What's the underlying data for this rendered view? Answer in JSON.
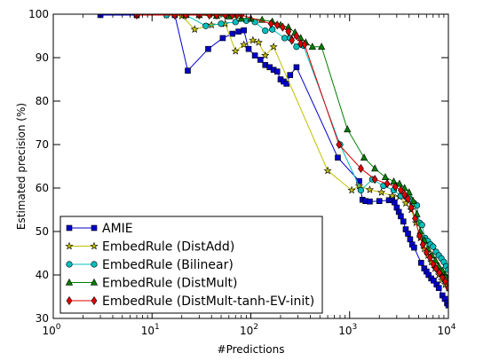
{
  "chart_data": {
    "type": "line",
    "title": "",
    "xlabel": "#Predictions",
    "ylabel": "Estimated precision (%)",
    "xscale": "log",
    "xlim": [
      1,
      10000
    ],
    "ylim": [
      30,
      100
    ],
    "xticks": [
      {
        "value": 1,
        "base": "10",
        "exp": "0"
      },
      {
        "value": 10,
        "base": "10",
        "exp": "1"
      },
      {
        "value": 100,
        "base": "10",
        "exp": "2"
      },
      {
        "value": 1000,
        "base": "10",
        "exp": "3"
      },
      {
        "value": 10000,
        "base": "10",
        "exp": "4"
      }
    ],
    "yticks": [
      30,
      40,
      50,
      60,
      70,
      80,
      90,
      100
    ],
    "grid": false,
    "legend_position": "lower-left",
    "series": [
      {
        "name": "AMIE",
        "color": "#0000cc",
        "marker": "square",
        "points": [
          [
            3,
            99.8
          ],
          [
            7,
            99.8
          ],
          [
            17,
            99.8
          ],
          [
            23,
            87
          ],
          [
            37,
            92
          ],
          [
            52,
            94.5
          ],
          [
            65,
            95.5
          ],
          [
            75,
            96
          ],
          [
            85,
            96.3
          ],
          [
            95,
            92
          ],
          [
            110,
            90.5
          ],
          [
            125,
            89.5
          ],
          [
            140,
            88.3
          ],
          [
            155,
            87.8
          ],
          [
            170,
            87.2
          ],
          [
            185,
            86.8
          ],
          [
            200,
            85
          ],
          [
            215,
            84.5
          ],
          [
            230,
            84
          ],
          [
            250,
            86
          ],
          [
            290,
            87.8
          ],
          [
            760,
            67
          ],
          [
            1250,
            61.6
          ],
          [
            1350,
            57.3
          ],
          [
            1450,
            57
          ],
          [
            1600,
            56.9
          ],
          [
            2000,
            57
          ],
          [
            2500,
            57.2
          ],
          [
            2700,
            57.5
          ],
          [
            2850,
            56.7
          ],
          [
            3000,
            55.5
          ],
          [
            3150,
            54.5
          ],
          [
            3300,
            53.5
          ],
          [
            3500,
            52.3
          ],
          [
            3700,
            50.5
          ],
          [
            3900,
            49.5
          ],
          [
            4100,
            48.2
          ],
          [
            4300,
            47
          ],
          [
            4500,
            46.3
          ],
          [
            5300,
            42.8
          ],
          [
            5700,
            41.5
          ],
          [
            6000,
            40.8
          ],
          [
            6300,
            40
          ],
          [
            6700,
            39.2
          ],
          [
            7100,
            38.7
          ],
          [
            7600,
            37.8
          ],
          [
            8000,
            37
          ],
          [
            8700,
            35.3
          ],
          [
            9200,
            34.5
          ],
          [
            9700,
            33.5
          ],
          [
            10000,
            33
          ]
        ]
      },
      {
        "name": "EmbedRule (DistAdd)",
        "color": "#bfbf00",
        "marker": "star",
        "points": [
          [
            7,
            99.8
          ],
          [
            14,
            99.8
          ],
          [
            20,
            99.6
          ],
          [
            27,
            96.5
          ],
          [
            40,
            97.5
          ],
          [
            55,
            97.8
          ],
          [
            70,
            91.5
          ],
          [
            85,
            93
          ],
          [
            105,
            94
          ],
          [
            120,
            93.5
          ],
          [
            140,
            90.5
          ],
          [
            170,
            92.5
          ],
          [
            600,
            64
          ],
          [
            1050,
            59.5
          ],
          [
            1250,
            60.5
          ],
          [
            1600,
            59.6
          ],
          [
            2100,
            59
          ],
          [
            2700,
            58.2
          ],
          [
            3200,
            58
          ],
          [
            3700,
            56.5
          ],
          [
            4200,
            55
          ],
          [
            4700,
            52
          ],
          [
            5200,
            48.5
          ],
          [
            5700,
            46
          ],
          [
            6200,
            44.5
          ],
          [
            6700,
            43
          ],
          [
            7300,
            41.5
          ],
          [
            8000,
            40
          ],
          [
            8600,
            38.8
          ],
          [
            9300,
            37.8
          ],
          [
            10000,
            37
          ]
        ]
      },
      {
        "name": "EmbedRule (Bilinear)",
        "color": "#00bfbf",
        "marker": "circle",
        "points": [
          [
            14,
            99.8
          ],
          [
            22,
            99.8
          ],
          [
            35,
            97.3
          ],
          [
            50,
            97.8
          ],
          [
            70,
            98.2
          ],
          [
            90,
            98.5
          ],
          [
            110,
            98.2
          ],
          [
            140,
            96.2
          ],
          [
            165,
            96.5
          ],
          [
            220,
            94.5
          ],
          [
            250,
            94.5
          ],
          [
            290,
            92.5
          ],
          [
            340,
            92.8
          ],
          [
            800,
            70
          ],
          [
            1300,
            59.5
          ],
          [
            1700,
            62
          ],
          [
            2200,
            60.5
          ],
          [
            2800,
            59.5
          ],
          [
            3300,
            58.2
          ],
          [
            3700,
            58
          ],
          [
            4100,
            57.5
          ],
          [
            4500,
            56.5
          ],
          [
            4800,
            56
          ],
          [
            5100,
            52
          ],
          [
            5400,
            51.5
          ],
          [
            5800,
            48.5
          ],
          [
            6200,
            47.8
          ],
          [
            6600,
            47
          ],
          [
            7000,
            46.5
          ],
          [
            7500,
            45.3
          ],
          [
            8000,
            44.5
          ],
          [
            8500,
            43.8
          ],
          [
            9000,
            43
          ],
          [
            9500,
            42
          ],
          [
            10000,
            41.2
          ]
        ]
      },
      {
        "name": "EmbedRule (DistMult)",
        "color": "#007f00",
        "marker": "triangle",
        "points": [
          [
            22,
            99.8
          ],
          [
            30,
            99.8
          ],
          [
            45,
            99.6
          ],
          [
            60,
            99.5
          ],
          [
            80,
            99
          ],
          [
            100,
            99
          ],
          [
            130,
            98.7
          ],
          [
            165,
            98.3
          ],
          [
            200,
            97.5
          ],
          [
            240,
            97
          ],
          [
            280,
            95.8
          ],
          [
            320,
            94.5
          ],
          [
            360,
            93.5
          ],
          [
            420,
            92.5
          ],
          [
            520,
            92.5
          ],
          [
            950,
            73.5
          ],
          [
            1400,
            67
          ],
          [
            1800,
            64.5
          ],
          [
            2300,
            62.5
          ],
          [
            2800,
            61.5
          ],
          [
            3200,
            61
          ],
          [
            3600,
            60
          ],
          [
            4000,
            59
          ],
          [
            4400,
            57
          ],
          [
            4800,
            54
          ],
          [
            5200,
            50
          ],
          [
            5700,
            48
          ],
          [
            6200,
            46
          ],
          [
            6800,
            44.5
          ],
          [
            7400,
            43.3
          ],
          [
            8000,
            42
          ],
          [
            8700,
            41
          ],
          [
            9300,
            40
          ],
          [
            10000,
            39
          ]
        ]
      },
      {
        "name": "EmbedRule (DistMult-tanh-EV-init)",
        "color": "#e00000",
        "marker": "diamond",
        "points": [
          [
            7,
            99.8
          ],
          [
            17,
            99.8
          ],
          [
            22,
            99.8
          ],
          [
            30,
            99.8
          ],
          [
            38,
            99.8
          ],
          [
            45,
            99.8
          ],
          [
            55,
            99.8
          ],
          [
            65,
            99.8
          ],
          [
            72,
            99.8
          ],
          [
            80,
            99.8
          ],
          [
            160,
            97.8
          ],
          [
            185,
            97.5
          ],
          [
            210,
            97
          ],
          [
            240,
            96
          ],
          [
            260,
            94
          ],
          [
            290,
            95
          ],
          [
            320,
            93.2
          ],
          [
            350,
            93
          ],
          [
            780,
            70
          ],
          [
            1300,
            64.5
          ],
          [
            1800,
            62
          ],
          [
            2400,
            61
          ],
          [
            2900,
            60.3
          ],
          [
            3300,
            59.5
          ],
          [
            3600,
            58.5
          ],
          [
            3900,
            57.5
          ],
          [
            4200,
            55.5
          ],
          [
            4600,
            53
          ],
          [
            5100,
            49
          ],
          [
            5500,
            47
          ],
          [
            6000,
            45.2
          ],
          [
            6500,
            44
          ],
          [
            7000,
            42.5
          ],
          [
            7500,
            41.5
          ],
          [
            8100,
            40.5
          ],
          [
            8700,
            39.5
          ],
          [
            9300,
            38.5
          ],
          [
            10000,
            37
          ]
        ]
      }
    ]
  }
}
